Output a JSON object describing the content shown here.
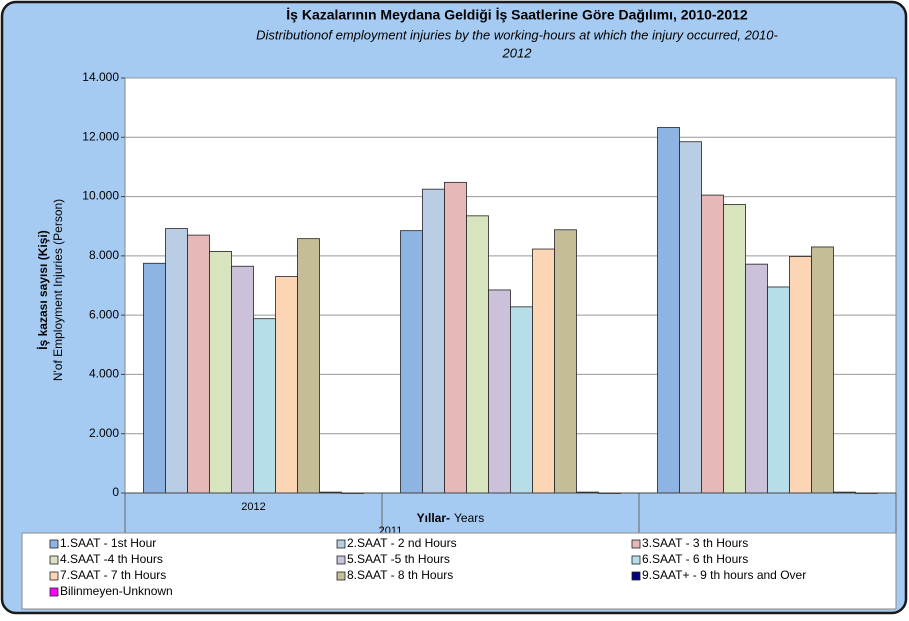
{
  "chart_data": {
    "type": "bar",
    "title": "İş Kazalarının Meydana Geldiği İş Saatlerine Göre Dağılımı, 2010-2012",
    "subtitle": [
      "Distributionof employment injuries by the working-hours at which the injury occurred, 2010-",
      "2012"
    ],
    "y_label": [
      "İş kazası sayısı (Kişi)",
      "N'of Employment Injuries (Person)"
    ],
    "x_label": [
      "Yıllar-",
      "Years"
    ],
    "categories": [
      "2012",
      "2011",
      null
    ],
    "ylim": [
      0,
      14000
    ],
    "yticks": [
      0,
      {
        "value": 2000,
        "label": "2.000"
      },
      {
        "value": 4000,
        "label": "4.000"
      },
      {
        "value": 6000,
        "label": "6.000"
      },
      {
        "value": 8000,
        "label": "8.000"
      },
      {
        "value": 10000,
        "label": "10.000"
      },
      {
        "value": 12000,
        "label": "12.000"
      },
      {
        "value": 14000,
        "label": "14.000"
      }
    ],
    "grid": true,
    "series": [
      {
        "name": "1.SAAT - 1st Hour",
        "color": "#8eb4e3",
        "values": [
          7750,
          8850,
          12330
        ]
      },
      {
        "name": "2.SAAT - 2 nd Hours",
        "color": "#b9cde5",
        "values": [
          8920,
          10250,
          11850
        ]
      },
      {
        "name": "3.SAAT - 3 th Hours",
        "color": "#e6b9b8",
        "values": [
          8700,
          10480,
          10050
        ]
      },
      {
        "name": "4.SAAT -4 th  Hours",
        "color": "#d7e4bd",
        "values": [
          8150,
          9350,
          9730
        ]
      },
      {
        "name": "5.SAAT -5 th  Hours",
        "color": "#ccc1da",
        "values": [
          7650,
          6850,
          7720
        ]
      },
      {
        "name": "6.SAAT - 6 th  Hours",
        "color": "#b7dee8",
        "values": [
          5880,
          6280,
          6950
        ]
      },
      {
        "name": "7.SAAT - 7 th  Hours",
        "color": "#fcd5b5",
        "values": [
          7300,
          8230,
          7980
        ]
      },
      {
        "name": "8.SAAT - 8 th Hours",
        "color": "#c4bd97",
        "values": [
          8580,
          8880,
          8300
        ]
      },
      {
        "name": "9.SAAT+ - 9 th hours and Over",
        "color": "#000080",
        "values": [
          30,
          30,
          30
        ]
      },
      {
        "name": "Bilinmeyen-Unknown",
        "color": "#ff00ff",
        "values": [
          0,
          0,
          0
        ]
      }
    ]
  }
}
